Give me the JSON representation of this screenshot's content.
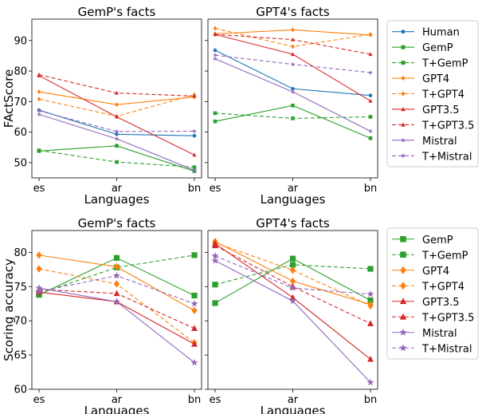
{
  "chart_data": [
    {
      "type": "line",
      "title": "GemP's facts",
      "xlabel": "Languages",
      "ylabel": "FActScore",
      "categories": [
        "es",
        "ar",
        "bn"
      ],
      "ylim": [
        45,
        97
      ],
      "yticks": [
        50,
        60,
        70,
        80,
        90
      ],
      "series": [
        {
          "name": "Human",
          "values": [
            67.2,
            59.3,
            58.8
          ]
        },
        {
          "name": "GemP",
          "values": [
            53.8,
            55.5,
            47.2
          ]
        },
        {
          "name": "T+GemP",
          "values": [
            54.0,
            50.2,
            48.5
          ]
        },
        {
          "name": "GPT4",
          "values": [
            73.2,
            69.0,
            71.5
          ]
        },
        {
          "name": "T+GPT4",
          "values": [
            70.8,
            65.2,
            72.2
          ]
        },
        {
          "name": "GPT3.5",
          "values": [
            78.5,
            65.0,
            52.5
          ]
        },
        {
          "name": "T+GPT3.5",
          "values": [
            78.8,
            72.8,
            71.8
          ]
        },
        {
          "name": "Mistral",
          "values": [
            65.8,
            57.8,
            47.5
          ]
        },
        {
          "name": "T+Mistral",
          "values": [
            67.0,
            60.2,
            60.3
          ]
        }
      ]
    },
    {
      "type": "line",
      "title": "GPT4's facts",
      "xlabel": "Languages",
      "ylabel": "",
      "categories": [
        "es",
        "ar",
        "bn"
      ],
      "ylim": [
        45,
        97
      ],
      "yticks": [
        50,
        60,
        70,
        80,
        90
      ],
      "series": [
        {
          "name": "Human",
          "values": [
            86.8,
            74.2,
            72.0
          ]
        },
        {
          "name": "GemP",
          "values": [
            63.5,
            68.7,
            58.0
          ]
        },
        {
          "name": "T+GemP",
          "values": [
            66.2,
            64.5,
            65.0
          ]
        },
        {
          "name": "GPT4",
          "values": [
            92.2,
            93.5,
            91.8
          ]
        },
        {
          "name": "T+GPT4",
          "values": [
            94.0,
            88.0,
            92.0
          ]
        },
        {
          "name": "GPT3.5",
          "values": [
            92.0,
            85.5,
            70.2
          ]
        },
        {
          "name": "T+GPT3.5",
          "values": [
            92.0,
            90.3,
            85.5
          ]
        },
        {
          "name": "Mistral",
          "values": [
            84.0,
            73.2,
            60.3
          ]
        },
        {
          "name": "T+Mistral",
          "values": [
            85.2,
            82.2,
            79.5
          ]
        }
      ]
    },
    {
      "type": "line",
      "title": "GemP's facts",
      "xlabel": "Languages",
      "ylabel": "Scoring accuracy",
      "categories": [
        "es",
        "ar",
        "bn"
      ],
      "ylim": [
        60,
        83.2
      ],
      "yticks": [
        60,
        65,
        70,
        75,
        80
      ],
      "series": [
        {
          "name": "GemP",
          "values": [
            73.8,
            79.2,
            73.7
          ]
        },
        {
          "name": "T+GemP",
          "values": [
            74.0,
            77.8,
            79.6
          ]
        },
        {
          "name": "GPT4",
          "values": [
            79.6,
            77.9,
            71.5
          ]
        },
        {
          "name": "T+GPT4",
          "values": [
            77.6,
            75.4,
            66.8
          ]
        },
        {
          "name": "GPT3.5",
          "values": [
            74.2,
            72.8,
            66.6
          ]
        },
        {
          "name": "T+GPT3.5",
          "values": [
            74.6,
            74.0,
            68.9
          ]
        },
        {
          "name": "Mistral",
          "values": [
            74.8,
            72.8,
            63.9
          ]
        },
        {
          "name": "T+Mistral",
          "values": [
            74.3,
            76.6,
            72.5
          ]
        }
      ]
    },
    {
      "type": "line",
      "title": "GPT4's facts",
      "xlabel": "Languages",
      "ylabel": "",
      "categories": [
        "es",
        "ar",
        "bn"
      ],
      "ylim": [
        60,
        83.2
      ],
      "yticks": [
        60,
        65,
        70,
        75,
        80
      ],
      "series": [
        {
          "name": "GemP",
          "values": [
            72.6,
            79.1,
            73.0
          ]
        },
        {
          "name": "T+GemP",
          "values": [
            75.3,
            78.2,
            77.6
          ]
        },
        {
          "name": "GPT4",
          "values": [
            81.6,
            75.8,
            72.4
          ]
        },
        {
          "name": "T+GPT4",
          "values": [
            81.4,
            77.4,
            72.2
          ]
        },
        {
          "name": "GPT3.5",
          "values": [
            81.3,
            73.4,
            64.4
          ]
        },
        {
          "name": "T+GPT3.5",
          "values": [
            81.0,
            75.0,
            69.6
          ]
        },
        {
          "name": "Mistral",
          "values": [
            78.8,
            72.9,
            61.0
          ]
        },
        {
          "name": "T+Mistral",
          "values": [
            79.5,
            74.8,
            73.9
          ]
        }
      ]
    }
  ],
  "series_styles": {
    "Human": {
      "color": "#1f77b4",
      "dashed": false,
      "marker": "circle"
    },
    "GemP": {
      "color": "#2ca02c",
      "dashed": false,
      "marker": "square"
    },
    "T+GemP": {
      "color": "#2ca02c",
      "dashed": true,
      "marker": "square"
    },
    "GPT4": {
      "color": "#ff7f0e",
      "dashed": false,
      "marker": "diamond"
    },
    "T+GPT4": {
      "color": "#ff7f0e",
      "dashed": true,
      "marker": "diamond"
    },
    "GPT3.5": {
      "color": "#d62728",
      "dashed": false,
      "marker": "triangle"
    },
    "T+GPT3.5": {
      "color": "#d62728",
      "dashed": true,
      "marker": "triangle"
    },
    "Mistral": {
      "color": "#9467bd",
      "dashed": false,
      "marker": "star"
    },
    "T+Mistral": {
      "color": "#9467bd",
      "dashed": true,
      "marker": "star"
    }
  },
  "legends": [
    {
      "entries": [
        "Human",
        "GemP",
        "T+GemP",
        "GPT4",
        "T+GPT4",
        "GPT3.5",
        "T+GPT3.5",
        "Mistral",
        "T+Mistral"
      ]
    },
    {
      "entries": [
        "GemP",
        "T+GemP",
        "GPT4",
        "T+GPT4",
        "GPT3.5",
        "T+GPT3.5",
        "Mistral",
        "T+Mistral"
      ]
    }
  ]
}
